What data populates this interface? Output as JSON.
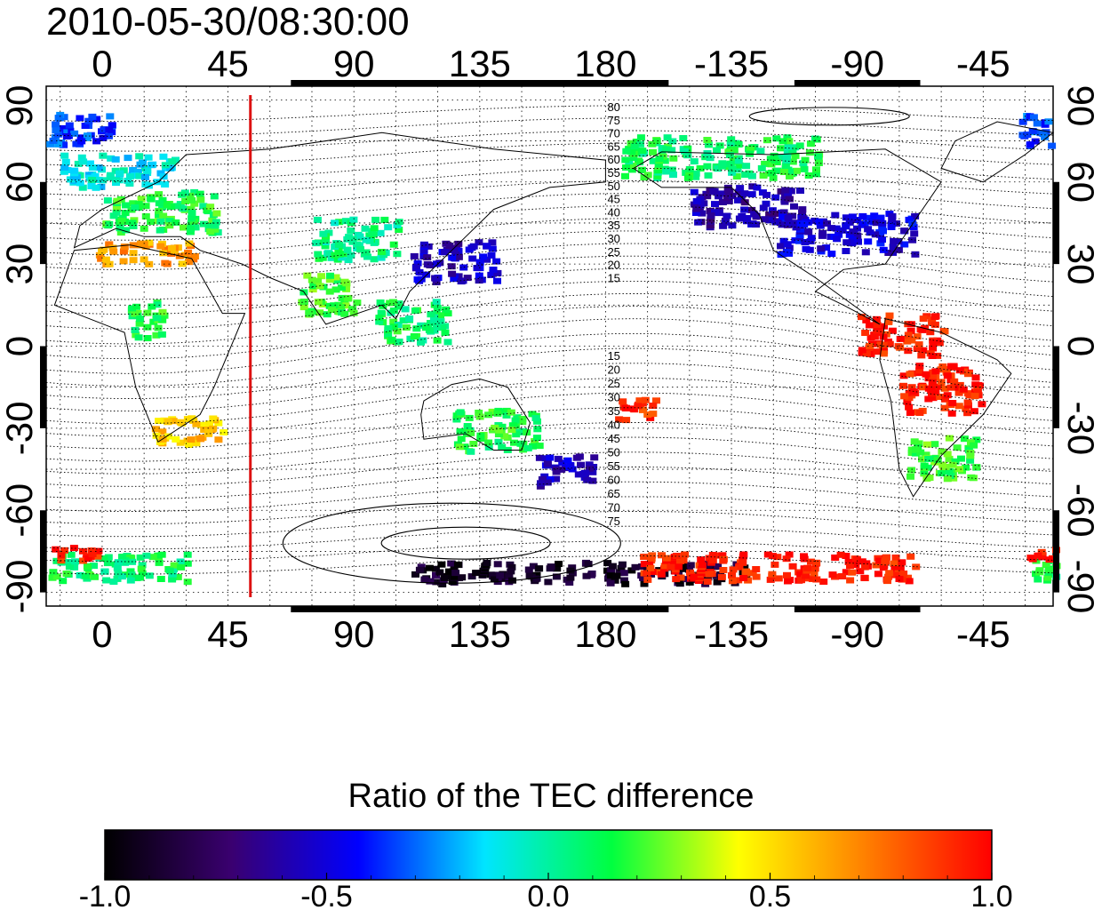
{
  "timestamp": "2010-05-30/08:30:00",
  "map": {
    "longitude_ticks": [
      "0",
      "45",
      "90",
      "135",
      "180",
      "-135",
      "-90",
      "-45"
    ],
    "longitude_tick_values": [
      0,
      45,
      90,
      135,
      180,
      -135,
      -90,
      -45
    ],
    "latitude_ticks": [
      "90",
      "60",
      "30",
      "0",
      "-30",
      "-60",
      "-90"
    ],
    "latitude_tick_values": [
      90,
      60,
      30,
      0,
      -30,
      -60,
      -90
    ],
    "lon_range": [
      -20,
      340
    ],
    "lat_range": [
      -95,
      95
    ],
    "grid": true,
    "marker_line": {
      "longitude": 53,
      "color": "#dd1111"
    },
    "contour_labels_north": [
      "80",
      "75",
      "70",
      "65",
      "60",
      "55",
      "50",
      "45",
      "40",
      "35",
      "30",
      "25",
      "20",
      "15"
    ],
    "contour_labels_south": [
      "15",
      "20",
      "25",
      "30",
      "35",
      "40",
      "45",
      "50",
      "55",
      "60",
      "65",
      "70",
      "75"
    ],
    "contour_label_longitude": 180
  },
  "colorbar": {
    "title": "Ratio of the TEC difference",
    "tick_labels": [
      "-1.0",
      "-0.5",
      "0.0",
      "0.5",
      "1.0"
    ],
    "tick_values": [
      -1.0,
      -0.5,
      0.0,
      0.5,
      1.0
    ],
    "range": [
      -1.0,
      1.0
    ],
    "colormap": [
      "#000000",
      "#3a0070",
      "#0000ff",
      "#00e5ff",
      "#00ff40",
      "#ffff00",
      "#ff8000",
      "#ff0000"
    ]
  },
  "regions": [
    {
      "lon": -15,
      "lat": 80,
      "w": 35,
      "h": 12,
      "v": -0.35
    },
    {
      "lon": 5,
      "lat": 65,
      "w": 40,
      "h": 12,
      "v": -0.1
    },
    {
      "lon": 20,
      "lat": 50,
      "w": 40,
      "h": 15,
      "v": 0.15
    },
    {
      "lon": 15,
      "lat": 35,
      "w": 35,
      "h": 8,
      "v": 0.65
    },
    {
      "lon": 30,
      "lat": -30,
      "w": 25,
      "h": 10,
      "v": 0.55
    },
    {
      "lon": 15,
      "lat": 10,
      "w": 12,
      "h": 15,
      "v": 0.15
    },
    {
      "lon": 90,
      "lat": 40,
      "w": 30,
      "h": 15,
      "v": 0.05
    },
    {
      "lon": 125,
      "lat": 32,
      "w": 30,
      "h": 15,
      "v": -0.55
    },
    {
      "lon": 80,
      "lat": 20,
      "w": 20,
      "h": 15,
      "v": 0.2
    },
    {
      "lon": 110,
      "lat": 10,
      "w": 25,
      "h": 15,
      "v": 0.1
    },
    {
      "lon": 140,
      "lat": -30,
      "w": 30,
      "h": 15,
      "v": 0.15
    },
    {
      "lon": 165,
      "lat": -45,
      "w": 20,
      "h": 12,
      "v": -0.55
    },
    {
      "lon": 190,
      "lat": -22,
      "w": 15,
      "h": 8,
      "v": 0.9
    },
    {
      "lon": 230,
      "lat": 52,
      "w": 40,
      "h": 15,
      "v": -0.6
    },
    {
      "lon": 265,
      "lat": 42,
      "w": 50,
      "h": 15,
      "v": -0.5
    },
    {
      "lon": 220,
      "lat": 70,
      "w": 70,
      "h": 15,
      "v": 0.1
    },
    {
      "lon": 285,
      "lat": 5,
      "w": 30,
      "h": 15,
      "v": 0.95
    },
    {
      "lon": 300,
      "lat": -15,
      "w": 30,
      "h": 18,
      "v": 0.95
    },
    {
      "lon": 300,
      "lat": -40,
      "w": 25,
      "h": 15,
      "v": 0.2
    },
    {
      "lon": 170,
      "lat": -82,
      "w": 120,
      "h": 8,
      "v": -0.9
    },
    {
      "lon": 240,
      "lat": -80,
      "w": 100,
      "h": 10,
      "v": 0.95
    },
    {
      "lon": 0,
      "lat": -80,
      "w": 60,
      "h": 10,
      "v": 0.1
    },
    {
      "lon": -15,
      "lat": -75,
      "w": 30,
      "h": 5,
      "v": 0.95
    }
  ]
}
